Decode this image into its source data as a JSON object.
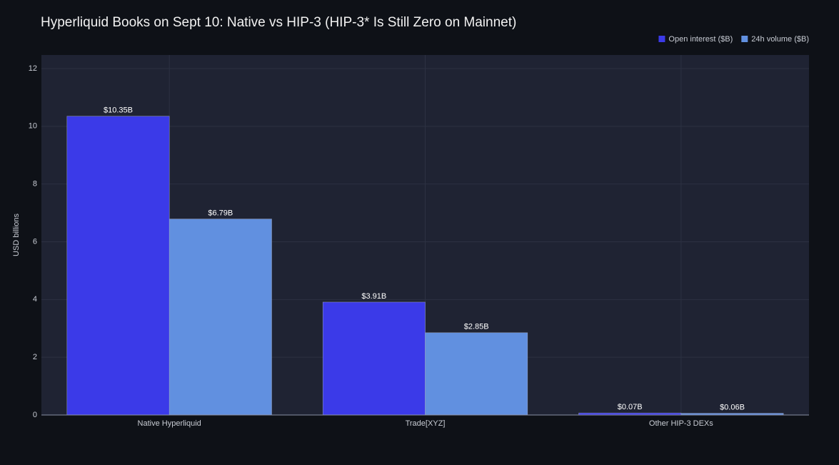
{
  "chart_data": {
    "type": "bar",
    "title": "Hyperliquid Books on Sept 10: Native vs HIP-3 (HIP-3* Is Still Zero on Mainnet)",
    "y_label": "USD billions",
    "categories": [
      "Native Hyperliquid",
      "Trade[XYZ]",
      "Other HIP-3 DEXs"
    ],
    "series": [
      {
        "name": "Open interest ($B)",
        "color": "#3b3ae8",
        "values": [
          10.35,
          3.91,
          0.07
        ],
        "value_labels": [
          "$10.35B",
          "$3.91B",
          "$0.07B"
        ]
      },
      {
        "name": "24h volume ($B)",
        "color": "#6190e0",
        "values": [
          6.79,
          2.85,
          0.06
        ],
        "value_labels": [
          "$6.79B",
          "$2.85B",
          "$0.06B"
        ]
      }
    ],
    "ylim": [
      0,
      12.47
    ],
    "yticks": [
      0,
      2,
      4,
      6,
      8,
      10,
      12
    ],
    "grid": true,
    "legend": "top-right"
  }
}
